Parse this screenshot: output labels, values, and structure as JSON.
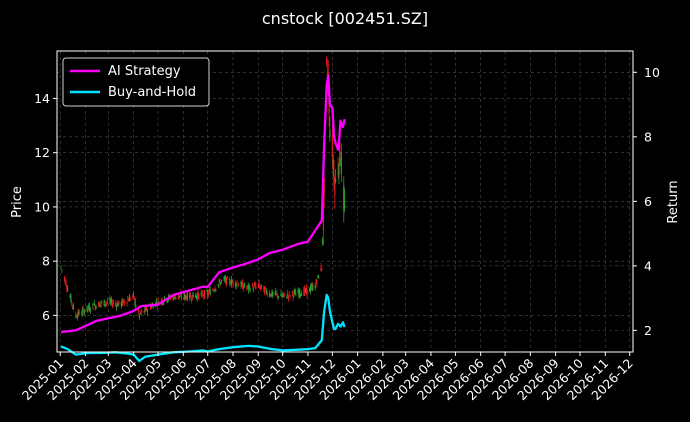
{
  "chart_data": {
    "type": "line",
    "title": "cnstock [002451.SZ]",
    "ylabel_left": "Price",
    "ylabel_right": "Return",
    "ylim_left": [
      4.65,
      15.75
    ],
    "ylim_right": [
      1.33,
      10.66
    ],
    "yticks_left": [
      6,
      8,
      10,
      12,
      14
    ],
    "yticks_right": [
      2,
      4,
      6,
      8,
      10
    ],
    "xlim": [
      "2024-12-28",
      "2026-12-05"
    ],
    "xticks": [
      "2025-01",
      "2025-02",
      "2025-03",
      "2025-04",
      "2025-05",
      "2025-06",
      "2025-07",
      "2025-08",
      "2025-09",
      "2025-10",
      "2025-11",
      "2025-12",
      "2026-01",
      "2026-02",
      "2026-03",
      "2026-04",
      "2026-05",
      "2026-06",
      "2026-07",
      "2026-08",
      "2026-09",
      "2026-10",
      "2026-11",
      "2026-12"
    ],
    "grid": true,
    "legend": "upper left",
    "colors": {
      "up": "#2ca02c",
      "down": "#e31a1c",
      "strategy": "#ff00ff",
      "buyhold": "#00e5ff"
    },
    "series": [
      {
        "name": "AI Strategy",
        "axis": "right",
        "x": [
          "2025-01-02",
          "2025-01-20",
          "2025-02-15",
          "2025-03-15",
          "2025-04-01",
          "2025-04-10",
          "2025-05-01",
          "2025-05-20",
          "2025-06-10",
          "2025-06-25",
          "2025-07-01",
          "2025-07-15",
          "2025-08-01",
          "2025-08-15",
          "2025-09-01",
          "2025-09-15",
          "2025-10-01",
          "2025-10-20",
          "2025-11-01",
          "2025-11-10",
          "2025-11-18",
          "2025-11-21",
          "2025-11-24",
          "2025-11-26",
          "2025-11-28",
          "2025-12-01",
          "2025-12-03",
          "2025-12-05",
          "2025-12-08",
          "2025-12-09",
          "2025-12-11",
          "2025-12-14",
          "2025-12-16"
        ],
        "values": [
          1.95,
          2.0,
          2.3,
          2.45,
          2.6,
          2.75,
          2.8,
          3.1,
          3.25,
          3.35,
          3.35,
          3.8,
          3.95,
          4.05,
          4.2,
          4.4,
          4.5,
          4.68,
          4.75,
          5.1,
          5.4,
          7.8,
          9.6,
          9.9,
          9.0,
          8.9,
          8.0,
          7.8,
          7.6,
          7.8,
          8.5,
          8.3,
          8.55
        ]
      },
      {
        "name": "Buy-and-Hold",
        "axis": "right",
        "x": [
          "2025-01-02",
          "2025-01-10",
          "2025-01-20",
          "2025-02-05",
          "2025-02-20",
          "2025-03-10",
          "2025-03-25",
          "2025-04-01",
          "2025-04-08",
          "2025-04-15",
          "2025-05-01",
          "2025-05-20",
          "2025-06-10",
          "2025-06-25",
          "2025-07-01",
          "2025-07-15",
          "2025-08-01",
          "2025-08-20",
          "2025-09-01",
          "2025-09-15",
          "2025-10-01",
          "2025-10-20",
          "2025-11-01",
          "2025-11-10",
          "2025-11-18",
          "2025-11-21",
          "2025-11-24",
          "2025-11-26",
          "2025-11-28",
          "2025-12-01",
          "2025-12-03",
          "2025-12-05",
          "2025-12-08",
          "2025-12-11",
          "2025-12-14",
          "2025-12-16"
        ],
        "values": [
          1.5,
          1.42,
          1.25,
          1.3,
          1.3,
          1.32,
          1.28,
          1.25,
          1.05,
          1.18,
          1.25,
          1.32,
          1.35,
          1.38,
          1.35,
          1.42,
          1.48,
          1.52,
          1.5,
          1.43,
          1.38,
          1.4,
          1.42,
          1.45,
          1.7,
          2.6,
          3.1,
          3.0,
          2.6,
          2.25,
          2.05,
          2.05,
          2.2,
          2.12,
          2.25,
          2.1
        ]
      }
    ],
    "price_range": {
      "axis": "left",
      "x": [
        "2025-01-02",
        "2025-01-10",
        "2025-01-20",
        "2025-02-01",
        "2025-02-15",
        "2025-03-01",
        "2025-03-15",
        "2025-04-01",
        "2025-04-08",
        "2025-04-20",
        "2025-05-01",
        "2025-05-20",
        "2025-06-10",
        "2025-07-01",
        "2025-07-20",
        "2025-08-05",
        "2025-08-20",
        "2025-09-01",
        "2025-09-15",
        "2025-10-01",
        "2025-10-15",
        "2025-11-01",
        "2025-11-10",
        "2025-11-18",
        "2025-11-21",
        "2025-11-24",
        "2025-11-26",
        "2025-11-28",
        "2025-12-01",
        "2025-12-03",
        "2025-12-05",
        "2025-12-08",
        "2025-12-11",
        "2025-12-14",
        "2025-12-16"
      ],
      "values": [
        7.8,
        7.0,
        6.0,
        6.2,
        6.4,
        6.5,
        6.4,
        6.7,
        6.0,
        6.3,
        6.5,
        6.7,
        6.7,
        6.8,
        7.3,
        7.2,
        7.0,
        7.1,
        6.8,
        6.7,
        6.8,
        6.9,
        7.1,
        7.8,
        10.5,
        15.0,
        14.8,
        13.0,
        12.2,
        11.2,
        10.8,
        11.6,
        12.0,
        10.8,
        9.7
      ]
    }
  }
}
